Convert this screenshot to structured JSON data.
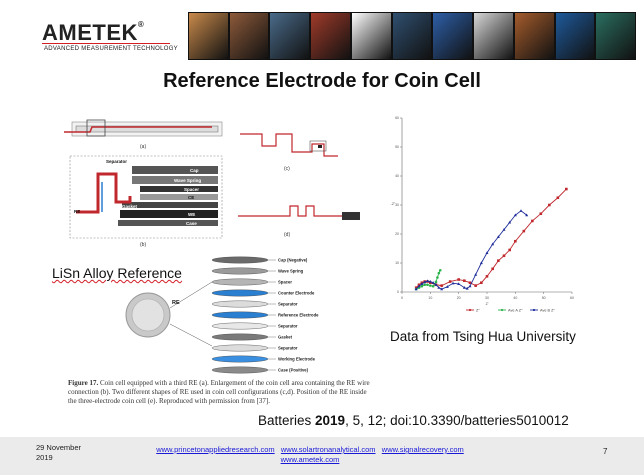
{
  "header": {
    "logo_text": "AMETEK",
    "logo_tagline": "ADVANCED MEASUREMENT TECHNOLOGY",
    "banner_colors": [
      "#c98a4b",
      "#8d5a3a",
      "#4a6b8a",
      "#a03b2a",
      "#ffffff",
      "#2f4f6f",
      "#2d5fa8",
      "#d8d8d8",
      "#a55c2c",
      "#1e5a9b",
      "#2a6e60"
    ]
  },
  "slide": {
    "title": "Reference Electrode for Coin Cell",
    "lisn_label": "LiSn Alloy Reference",
    "data_source": "Data from Tsing Hua University",
    "citation_prefix": "Batteries ",
    "citation_year": "2019",
    "citation_rest": ", 5, 12; doi:10.3390/batteries5010012"
  },
  "figure": {
    "caption_label": "Figure 17.",
    "caption_text": " Coin cell equipped with a third RE (a). Enlargement of the coin cell area containing the RE wire connection (b). Two different shapes of RE used in coin cell configurations (c,d). Position of the RE inside the three-electrode coin cell (e). Reproduced with permission from [37].",
    "panel_labels": {
      "a": "(a)",
      "b": "(b)",
      "c": "(c)",
      "d": "(d)"
    },
    "cell_labels": {
      "separator": "Separator",
      "cap": "Cap",
      "wave_spring": "Wave Spring",
      "spacer": "Spacer",
      "ce": "CE",
      "gasket": "Gasket",
      "we": "WE",
      "case": "Case",
      "re": "RE"
    },
    "stack_labels": [
      "Cap (Negative)",
      "Wave Spring",
      "Spacer",
      "Counter Electrode",
      "Separator",
      "Reference Electrode",
      "Separator",
      "Gasket",
      "Separator",
      "Working Electrode",
      "Case (Positive)"
    ],
    "re_small": "RE"
  },
  "chart_data": {
    "type": "scatter",
    "title": "",
    "xlabel": "Z'",
    "ylabel": "-Z''",
    "xlim": [
      0,
      60
    ],
    "ylim": [
      0,
      60
    ],
    "x_ticks": [
      "0",
      "10",
      "20",
      "30",
      "40",
      "50",
      "60"
    ],
    "y_ticks": [
      "0",
      "10",
      "20",
      "30",
      "40",
      "50",
      "60"
    ],
    "legend_placement": "bottom-right",
    "series": [
      {
        "name": "Z''",
        "color": "#c0282d",
        "x": [
          5,
          6,
          7,
          8,
          9,
          10,
          12,
          14,
          17,
          20,
          22,
          24,
          26,
          28,
          30,
          32,
          34,
          36,
          38,
          40,
          43,
          46,
          49,
          52,
          55,
          58
        ],
        "y": [
          1.5,
          2.5,
          3.2,
          3.6,
          3.6,
          3.2,
          2.5,
          2.2,
          3.6,
          4.3,
          3.9,
          3.2,
          2.2,
          3.2,
          5.4,
          8.0,
          10.8,
          12.5,
          14.5,
          17.5,
          21.0,
          24.5,
          27.0,
          30.0,
          32.5,
          35.5
        ]
      },
      {
        "name": "Ave A Z''",
        "color": "#2cb34a",
        "x": [
          5,
          6,
          7,
          8,
          9,
          10,
          11,
          12,
          12.5,
          13,
          13.5
        ],
        "y": [
          1.0,
          1.5,
          2.0,
          2.5,
          2.5,
          2.2,
          2.0,
          3.5,
          5.0,
          6.5,
          7.5
        ]
      },
      {
        "name": "Ave B Z''",
        "color": "#1f2d9a",
        "x": [
          5,
          6,
          7,
          8,
          9,
          10,
          11,
          12,
          13,
          14,
          16,
          18,
          20,
          22,
          23,
          24,
          26,
          28,
          30,
          32,
          34,
          36,
          38,
          40,
          42,
          44
        ],
        "y": [
          1.0,
          2.0,
          2.8,
          3.4,
          3.8,
          3.6,
          3.2,
          2.5,
          1.5,
          1.0,
          1.8,
          3.0,
          2.8,
          1.5,
          1.2,
          2.0,
          6.0,
          10.0,
          13.5,
          16.5,
          19.0,
          21.5,
          24.0,
          26.5,
          28.0,
          26.5
        ]
      }
    ]
  },
  "footer": {
    "date_line1": "29 November",
    "date_line2": "2019",
    "link1": "www.princetonappliedresearch.com",
    "link2": "www.solartronanalytical.com",
    "link3": "www.signalrecovery.com",
    "link4": "www.ametek.com",
    "page_number": "7"
  }
}
